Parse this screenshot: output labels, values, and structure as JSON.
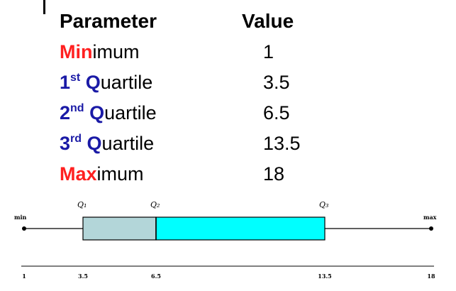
{
  "table": {
    "header_parameter": "Parameter",
    "header_value": "Value",
    "rows": [
      {
        "lead": "Min",
        "sup": "",
        "rest": "imum",
        "lead_color": "red",
        "value": "1"
      },
      {
        "lead": "1",
        "sup": "st",
        "rest": " Quartile",
        "lead_color": "blue",
        "value": "3.5"
      },
      {
        "lead": "2",
        "sup": "nd",
        "rest": " Quartile",
        "lead_color": "blue",
        "value": "6.5"
      },
      {
        "lead": "3",
        "sup": "rd",
        "rest": " Quartile",
        "lead_color": "blue",
        "value": "13.5"
      },
      {
        "lead": "Max",
        "sup": "",
        "rest": "imum",
        "lead_color": "red",
        "value": "18"
      }
    ]
  },
  "colors": {
    "red": "#ff2020",
    "blue": "#1a1aa6",
    "box_left": "#b3d6d9",
    "box_right": "#00ffff"
  },
  "chart_data": {
    "type": "boxplot",
    "min": 1,
    "q1": 3.5,
    "median": 6.5,
    "q3": 13.5,
    "max": 18,
    "end_labels": {
      "min": "min",
      "max": "max"
    },
    "quartile_labels": {
      "q1": "Q₁",
      "q2": "Q₂",
      "q3": "Q₃"
    },
    "tick_labels": [
      "1",
      "3.5",
      "6.5",
      "13.5",
      "18"
    ]
  }
}
